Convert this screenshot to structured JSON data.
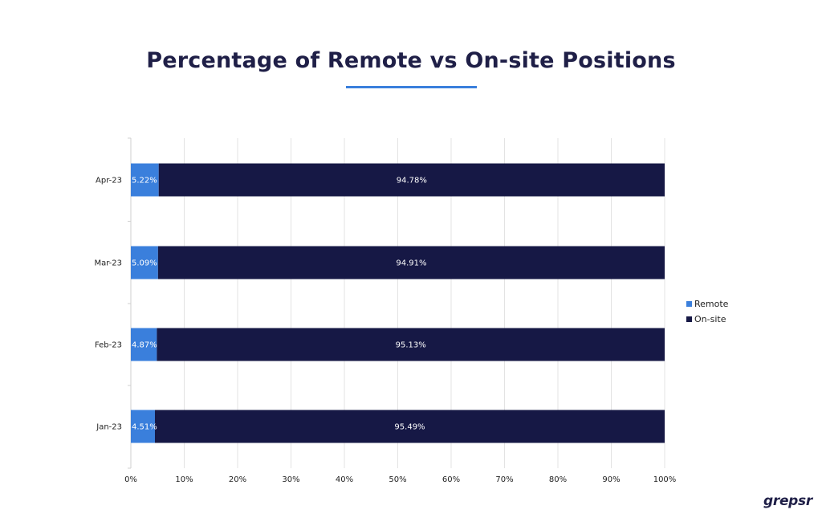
{
  "chart_data": {
    "type": "bar",
    "orientation": "horizontal",
    "stacked": true,
    "title": "Percentage of Remote vs On-site Positions",
    "categories": [
      "Apr-23",
      "Mar-23",
      "Feb-23",
      "Jan-23"
    ],
    "series": [
      {
        "name": "Remote",
        "color": "#3a7fdc",
        "values": [
          5.22,
          5.09,
          4.87,
          4.51
        ],
        "labels": [
          "5.22%",
          "5.09%",
          "4.87%",
          "4.51%"
        ]
      },
      {
        "name": "On-site",
        "color": "#161845",
        "values": [
          94.78,
          94.91,
          95.13,
          95.49
        ],
        "labels": [
          "94.78%",
          "94.91%",
          "95.13%",
          "95.49%"
        ]
      }
    ],
    "x_ticks": [
      "0%",
      "10%",
      "20%",
      "30%",
      "40%",
      "50%",
      "60%",
      "70%",
      "80%",
      "90%",
      "100%"
    ],
    "xlim": [
      0,
      100
    ],
    "grid": true,
    "legend_position": "right"
  },
  "brand": {
    "logo_text": "grepsr"
  }
}
